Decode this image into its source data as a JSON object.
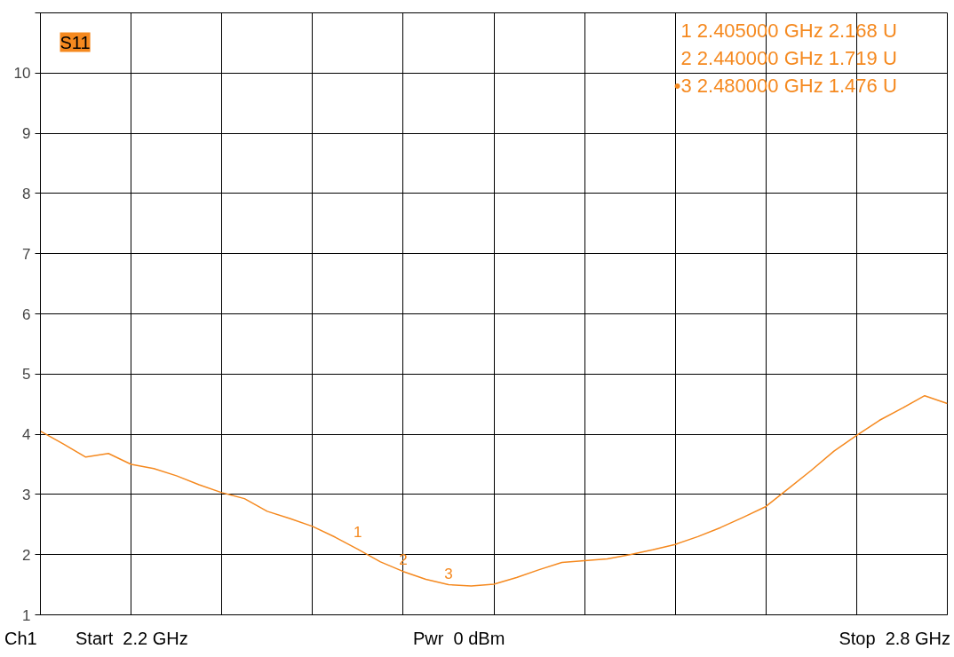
{
  "chart_data": {
    "type": "line",
    "title": "S11",
    "categories": [
      null,
      null,
      null,
      null,
      null,
      null,
      null,
      null,
      null,
      null,
      null,
      null,
      null,
      null,
      null,
      null,
      null,
      null,
      null,
      null,
      null,
      null,
      null,
      null,
      null,
      null,
      null,
      null,
      null,
      null,
      null,
      null,
      null,
      null,
      null,
      null,
      null,
      null,
      null,
      null,
      null
    ],
    "series": [
      {
        "color": "#f5891f",
        "values": [
          4.05,
          3.84,
          3.62,
          3.68,
          3.5,
          3.43,
          3.31,
          3.16,
          3.03,
          2.93,
          2.72,
          2.6,
          2.47,
          2.29,
          2.09,
          1.88,
          1.72,
          1.59,
          1.5,
          1.48,
          1.51,
          1.62,
          1.75,
          1.87,
          1.9,
          1.93,
          2.0,
          2.08,
          2.17,
          2.3,
          2.45,
          2.62,
          2.8,
          3.1,
          3.4,
          3.72,
          3.98,
          4.23,
          4.43,
          4.64,
          4.51
        ]
      }
    ],
    "ylim": [
      1,
      11
    ],
    "yticks": [
      1,
      2,
      3,
      4,
      5,
      6,
      7,
      8,
      9,
      10,
      {
        "value": 11,
        "label": null
      }
    ],
    "grid": true,
    "tick_labels": "y",
    "marker": "none",
    "line_style": "solid",
    "annotations": [
      "1   2.405000  GHz   2.168  U",
      "2   2.440000  GHz   1.719  U",
      "•3   2.480000  GHz   1.476  U",
      "Ch1",
      "Start  2.2 GHz",
      "Pwr  0 dBm",
      "Stop  2.8 GHz",
      {
        "text": "1",
        "y": 2.168
      },
      {
        "text": "2",
        "y": 1.719
      },
      {
        "text": "3",
        "y": 1.476
      }
    ]
  }
}
